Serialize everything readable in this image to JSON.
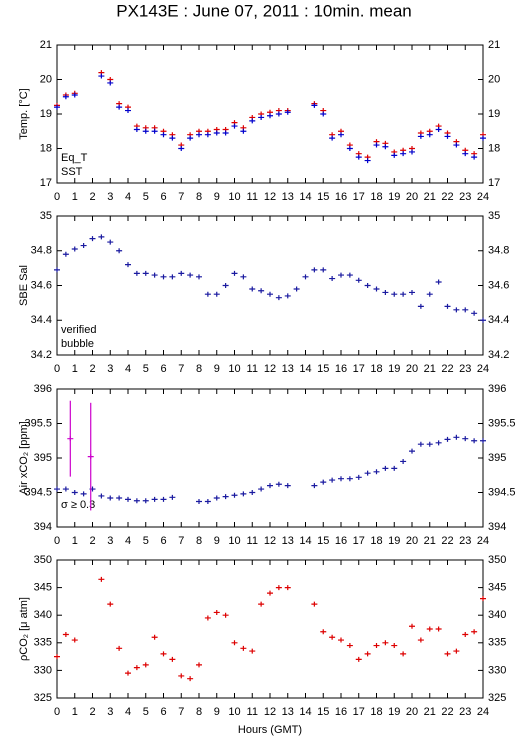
{
  "chart_data": [
    {
      "type": "scatter",
      "title": "PX143E : June 07, 2011 : 10min. mean",
      "y_label": "Temp. [°C]",
      "legend": "lower left",
      "xlim": [
        0,
        24
      ],
      "xticks": [
        0,
        1,
        2,
        3,
        4,
        5,
        6,
        7,
        8,
        9,
        10,
        11,
        12,
        13,
        14,
        15,
        16,
        17,
        18,
        19,
        20,
        21,
        22,
        23,
        24
      ],
      "ylim": [
        17,
        21
      ],
      "yticks": [
        17,
        18,
        19,
        20,
        21
      ],
      "series": [
        {
          "name": "Eq_T",
          "color": "#dd0000",
          "x": [
            0,
            0.5,
            1,
            1.5,
            2,
            2.5,
            3,
            3.5,
            4,
            4.5,
            5,
            5.5,
            6,
            6.5,
            7,
            7.5,
            8,
            8.5,
            9,
            9.5,
            10,
            10.5,
            11,
            11.5,
            12,
            12.5,
            13,
            13.5,
            14,
            14.5,
            15,
            15.5,
            16,
            16.5,
            17,
            17.5,
            18,
            18.5,
            19,
            19.5,
            20,
            20.5,
            21,
            21.5,
            22,
            22.5,
            23,
            23.5,
            24
          ],
          "values": [
            19.25,
            19.55,
            19.6,
            null,
            null,
            20.2,
            20.0,
            19.3,
            19.2,
            18.65,
            18.6,
            18.6,
            18.5,
            18.4,
            18.1,
            18.4,
            18.5,
            18.5,
            18.55,
            18.55,
            18.75,
            18.6,
            18.9,
            19.0,
            19.05,
            19.1,
            19.1,
            null,
            null,
            19.3,
            19.1,
            18.4,
            18.5,
            18.1,
            17.85,
            17.75,
            18.2,
            18.15,
            17.9,
            17.95,
            18.0,
            18.45,
            18.5,
            18.65,
            18.45,
            18.2,
            17.95,
            17.85,
            18.4
          ]
        },
        {
          "name": "SST",
          "color": "#0000cc",
          "x": [
            0,
            0.5,
            1,
            1.5,
            2,
            2.5,
            3,
            3.5,
            4,
            4.5,
            5,
            5.5,
            6,
            6.5,
            7,
            7.5,
            8,
            8.5,
            9,
            9.5,
            10,
            10.5,
            11,
            11.5,
            12,
            12.5,
            13,
            13.5,
            14,
            14.5,
            15,
            15.5,
            16,
            16.5,
            17,
            17.5,
            18,
            18.5,
            19,
            19.5,
            20,
            20.5,
            21,
            21.5,
            22,
            22.5,
            23,
            23.5,
            24
          ],
          "values": [
            19.2,
            19.5,
            19.55,
            null,
            null,
            20.1,
            19.9,
            19.2,
            19.1,
            18.55,
            18.5,
            18.5,
            18.4,
            18.3,
            18.0,
            18.3,
            18.4,
            18.4,
            18.45,
            18.45,
            18.65,
            18.5,
            18.8,
            18.9,
            18.95,
            19.0,
            19.05,
            null,
            null,
            19.25,
            19.0,
            18.3,
            18.4,
            18.0,
            17.75,
            17.65,
            18.1,
            18.05,
            17.8,
            17.85,
            17.9,
            18.35,
            18.4,
            18.55,
            18.35,
            18.1,
            17.85,
            17.75,
            18.3
          ]
        }
      ]
    },
    {
      "type": "scatter",
      "y_label": "SBE Sal",
      "legend": "lower left",
      "xlim": [
        0,
        24
      ],
      "xticks": [
        0,
        1,
        2,
        3,
        4,
        5,
        6,
        7,
        8,
        9,
        10,
        11,
        12,
        13,
        14,
        15,
        16,
        17,
        18,
        19,
        20,
        21,
        22,
        23,
        24
      ],
      "ylim": [
        34.2,
        35
      ],
      "yticks": [
        34.2,
        34.4,
        34.6,
        34.8,
        35
      ],
      "series": [
        {
          "name": "verified",
          "color": "#1a1aa0",
          "x": [
            0,
            0.5,
            1,
            1.5,
            2,
            2.5,
            3,
            3.5,
            4,
            4.5,
            5,
            5.5,
            6,
            6.5,
            7,
            7.5,
            8,
            8.5,
            9,
            9.5,
            10,
            10.5,
            11,
            11.5,
            12,
            12.5,
            13,
            13.5,
            14,
            14.5,
            15,
            15.5,
            16,
            16.5,
            17,
            17.5,
            18,
            18.5,
            19,
            19.5,
            20,
            20.5,
            21,
            21.5,
            22,
            22.5,
            23,
            23.5,
            24
          ],
          "values": [
            34.69,
            34.78,
            34.81,
            34.83,
            34.87,
            34.88,
            34.85,
            34.8,
            34.72,
            34.67,
            34.67,
            34.66,
            34.65,
            34.65,
            34.67,
            34.66,
            34.65,
            34.55,
            34.55,
            34.6,
            34.67,
            34.65,
            34.58,
            34.57,
            34.55,
            34.53,
            34.54,
            34.58,
            34.65,
            34.69,
            34.69,
            34.64,
            34.66,
            34.66,
            34.63,
            34.6,
            34.58,
            34.56,
            34.55,
            34.55,
            34.56,
            34.48,
            34.55,
            34.62,
            34.48,
            34.46,
            34.46,
            34.44,
            34.4
          ]
        },
        {
          "name": "bubble",
          "color": "#cc00cc",
          "x": [],
          "values": []
        }
      ]
    },
    {
      "type": "scatter",
      "y_label": "Air xCO₂ [ppm]",
      "annotation": "σ ≥ 0.3",
      "annotation_color": "#cc00cc",
      "xlim": [
        0,
        24
      ],
      "xticks": [
        0,
        1,
        2,
        3,
        4,
        5,
        6,
        7,
        8,
        9,
        10,
        11,
        12,
        13,
        14,
        15,
        16,
        17,
        18,
        19,
        20,
        21,
        22,
        23,
        24
      ],
      "ylim": [
        394,
        396
      ],
      "yticks": [
        394,
        394.5,
        395,
        395.5,
        396
      ],
      "series": [
        {
          "color": "#1a1aa0",
          "x": [
            0,
            0.5,
            1,
            1.5,
            2,
            2.5,
            3,
            3.5,
            4,
            4.5,
            5,
            5.5,
            6,
            6.5,
            7,
            7.5,
            8,
            8.5,
            9,
            9.5,
            10,
            10.5,
            11,
            11.5,
            12,
            12.5,
            13,
            13.5,
            14,
            14.5,
            15,
            15.5,
            16,
            16.5,
            17,
            17.5,
            18,
            18.5,
            19,
            19.5,
            20,
            20.5,
            21,
            21.5,
            22,
            22.5,
            23,
            23.5,
            24
          ],
          "values": [
            394.55,
            394.55,
            394.5,
            394.48,
            394.55,
            394.45,
            394.42,
            394.42,
            394.4,
            394.38,
            394.38,
            394.4,
            394.4,
            394.43,
            null,
            null,
            394.37,
            394.37,
            394.42,
            394.44,
            394.46,
            394.48,
            394.5,
            394.55,
            394.6,
            394.62,
            394.6,
            null,
            null,
            394.6,
            394.65,
            394.68,
            394.7,
            394.7,
            394.72,
            394.78,
            394.8,
            394.85,
            394.85,
            394.95,
            395.1,
            395.2,
            395.2,
            395.22,
            395.27,
            395.3,
            395.28,
            395.25,
            395.25
          ]
        },
        {
          "color": "#cc00cc",
          "x": [
            0.75,
            1.9
          ],
          "values": [
            395.28,
            395.02
          ],
          "errors": [
            0.55,
            0.78
          ]
        }
      ]
    },
    {
      "type": "scatter",
      "y_label": "ρCO₂ [μ atm]",
      "x_label": "Hours (GMT)",
      "xlim": [
        0,
        24
      ],
      "xticks": [
        0,
        1,
        2,
        3,
        4,
        5,
        6,
        7,
        8,
        9,
        10,
        11,
        12,
        13,
        14,
        15,
        16,
        17,
        18,
        19,
        20,
        21,
        22,
        23,
        24
      ],
      "ylim": [
        325,
        350
      ],
      "yticks": [
        325,
        330,
        335,
        340,
        345,
        350
      ],
      "series": [
        {
          "color": "#dd0000",
          "x": [
            0,
            0.5,
            1,
            1.5,
            2,
            2.5,
            3,
            3.5,
            4,
            4.5,
            5,
            5.5,
            6,
            6.5,
            7,
            7.5,
            8,
            8.5,
            9,
            9.5,
            10,
            10.5,
            11,
            11.5,
            12,
            12.5,
            13,
            13.5,
            14,
            14.5,
            15,
            15.5,
            16,
            16.5,
            17,
            17.5,
            18,
            18.5,
            19,
            19.5,
            20,
            20.5,
            21,
            21.5,
            22,
            22.5,
            23,
            23.5,
            24
          ],
          "values": [
            332.5,
            336.5,
            335.5,
            null,
            null,
            346.5,
            342,
            334,
            329.5,
            330.5,
            331,
            336,
            333,
            332,
            329,
            328.5,
            331,
            339.5,
            340.5,
            340,
            335,
            334,
            333.5,
            342,
            344,
            345,
            345,
            null,
            null,
            342,
            337,
            336,
            335.5,
            334.5,
            332,
            333,
            334.5,
            335,
            334.5,
            333,
            338,
            335.5,
            337.5,
            337.5,
            333,
            333.5,
            336.5,
            337,
            343
          ]
        }
      ]
    }
  ]
}
